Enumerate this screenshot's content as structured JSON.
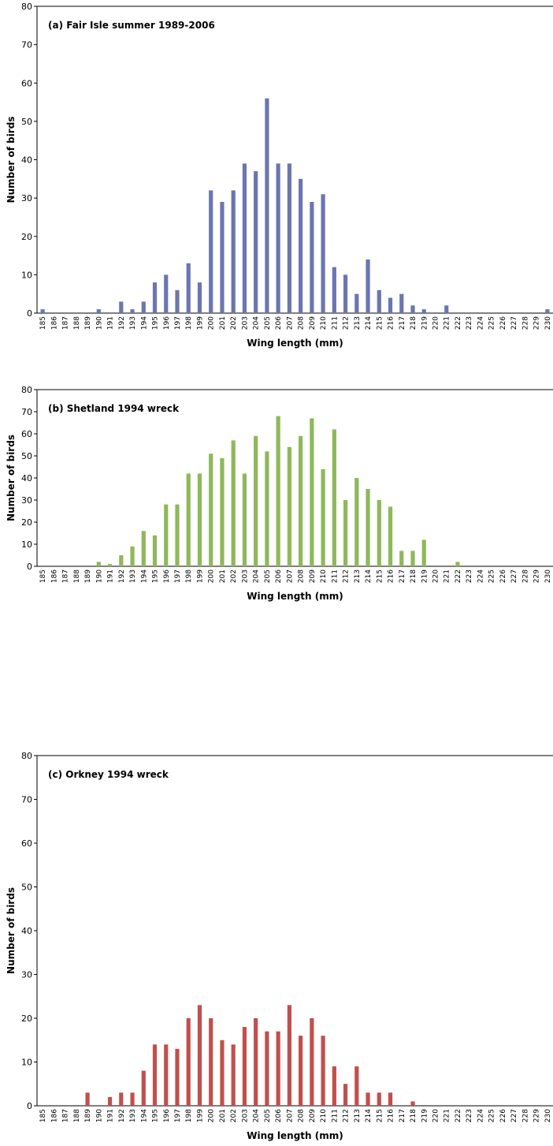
{
  "chart_data": [
    {
      "type": "bar",
      "title": "(a) Fair Isle summer 1989-2006",
      "xlabel": "Wing length (mm)",
      "ylabel": "Number of birds",
      "color": "#6b76b0",
      "categories": [
        185,
        186,
        187,
        188,
        189,
        190,
        191,
        192,
        193,
        194,
        195,
        196,
        197,
        198,
        199,
        200,
        201,
        202,
        203,
        204,
        205,
        206,
        207,
        208,
        209,
        210,
        211,
        212,
        213,
        214,
        215,
        216,
        217,
        218,
        219,
        220,
        221,
        222,
        223,
        224,
        225,
        226,
        227,
        228,
        229,
        230
      ],
      "values": [
        1,
        0,
        0,
        0,
        0,
        1,
        0,
        3,
        1,
        3,
        8,
        10,
        6,
        13,
        8,
        32,
        29,
        32,
        39,
        37,
        56,
        39,
        39,
        35,
        29,
        31,
        12,
        10,
        5,
        14,
        6,
        4,
        5,
        2,
        1,
        0,
        2,
        0,
        0,
        0,
        0,
        0,
        0,
        0,
        0,
        1
      ],
      "ylim": [
        0,
        80
      ],
      "yticks": [
        0,
        10,
        20,
        30,
        40,
        50,
        60,
        70,
        80
      ]
    },
    {
      "type": "bar",
      "title": "(b) Shetland 1994 wreck",
      "xlabel": "Wing length (mm)",
      "ylabel": "Number of birds",
      "color": "#8fb85a",
      "categories": [
        185,
        186,
        187,
        188,
        189,
        190,
        191,
        192,
        193,
        194,
        195,
        196,
        197,
        198,
        199,
        200,
        201,
        202,
        203,
        204,
        205,
        206,
        207,
        208,
        209,
        210,
        211,
        212,
        213,
        214,
        215,
        216,
        217,
        218,
        219,
        220,
        221,
        222,
        223,
        224,
        225,
        226,
        227,
        228,
        229,
        230
      ],
      "values": [
        0,
        0,
        0,
        0,
        0,
        2,
        1,
        5,
        9,
        16,
        14,
        28,
        28,
        42,
        42,
        51,
        49,
        57,
        42,
        59,
        52,
        68,
        54,
        59,
        67,
        44,
        62,
        30,
        40,
        35,
        30,
        27,
        7,
        7,
        12,
        0,
        0,
        2,
        0,
        0,
        0,
        0,
        0,
        0,
        0,
        0
      ],
      "ylim": [
        0,
        80
      ],
      "yticks": [
        0,
        10,
        20,
        30,
        40,
        50,
        60,
        70,
        80
      ]
    },
    {
      "type": "bar",
      "title": "(c) Orkney 1994 wreck",
      "xlabel": "Wing length (mm)",
      "ylabel": "Number of birds",
      "color": "#c0504d",
      "categories": [
        185,
        186,
        187,
        188,
        189,
        190,
        191,
        192,
        193,
        194,
        195,
        196,
        197,
        198,
        199,
        200,
        201,
        202,
        203,
        204,
        205,
        206,
        207,
        208,
        209,
        210,
        211,
        212,
        213,
        214,
        215,
        216,
        217,
        218,
        219,
        220,
        221,
        222,
        223,
        224,
        225,
        226,
        227,
        228,
        229,
        230
      ],
      "values": [
        0,
        0,
        0,
        0,
        3,
        0,
        2,
        3,
        3,
        8,
        14,
        14,
        13,
        20,
        23,
        20,
        15,
        14,
        18,
        20,
        17,
        17,
        23,
        16,
        20,
        16,
        9,
        5,
        9,
        3,
        3,
        3,
        0,
        1,
        0,
        0,
        0,
        0,
        0,
        0,
        0,
        0,
        0,
        0,
        0,
        0
      ],
      "ylim": [
        0,
        80
      ],
      "yticks": [
        0,
        10,
        20,
        30,
        40,
        50,
        60,
        70,
        80
      ]
    }
  ]
}
